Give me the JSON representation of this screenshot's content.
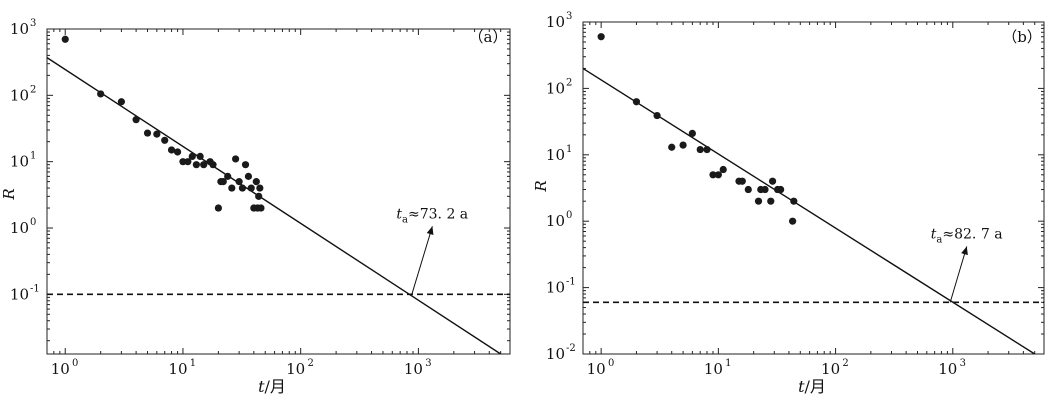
{
  "chart_data": [
    {
      "type": "scatter",
      "panel_label": "（a）",
      "x_scale": "log",
      "y_scale": "log",
      "xlim": [
        0.7,
        6000
      ],
      "ylim": [
        0.0126,
        1000
      ],
      "x_ticks": [
        1,
        10,
        100,
        1000
      ],
      "y_ticks": [
        0.1,
        1,
        10,
        100,
        1000
      ],
      "x_tick_labels": [
        "10",
        "10",
        "10",
        "10"
      ],
      "x_tick_exponents": [
        "0",
        "1",
        "2",
        "3"
      ],
      "y_tick_labels": [
        "10",
        "10",
        "10",
        "10",
        "10"
      ],
      "y_tick_exponents": [
        "-1",
        "0",
        "1",
        "2",
        "3"
      ],
      "xlabel": "t",
      "xlabel_unit": "/月",
      "ylabel": "R",
      "points": [
        [
          1,
          700
        ],
        [
          2,
          105
        ],
        [
          3,
          80
        ],
        [
          4,
          43
        ],
        [
          5,
          27
        ],
        [
          6,
          26
        ],
        [
          7,
          21
        ],
        [
          8,
          15
        ],
        [
          9,
          14
        ],
        [
          10,
          10
        ],
        [
          11,
          10
        ],
        [
          12,
          12
        ],
        [
          13,
          9
        ],
        [
          14,
          12
        ],
        [
          15,
          9
        ],
        [
          17,
          10
        ],
        [
          18,
          9
        ],
        [
          20,
          2
        ],
        [
          21,
          5
        ],
        [
          22,
          5
        ],
        [
          24,
          6
        ],
        [
          26,
          4
        ],
        [
          28,
          11
        ],
        [
          30,
          5
        ],
        [
          32,
          4
        ],
        [
          34,
          9
        ],
        [
          36,
          6
        ],
        [
          38,
          4
        ],
        [
          40,
          2
        ],
        [
          42,
          5
        ],
        [
          43,
          2
        ],
        [
          44,
          3
        ],
        [
          45,
          4
        ],
        [
          46,
          2
        ]
      ],
      "fit_line": [
        [
          0.7,
          370
        ],
        [
          5000,
          0.0126
        ]
      ],
      "threshold": 0.1,
      "annotation": {
        "t_symbol": "t",
        "t_subscript": "a",
        "text": "≈73. 2 a",
        "target": [
          880,
          0.1
        ],
        "label_at": [
          1000,
          1.4
        ]
      }
    },
    {
      "type": "scatter",
      "panel_label": "（b）",
      "x_scale": "log",
      "y_scale": "log",
      "xlim": [
        0.7,
        6000
      ],
      "ylim": [
        0.01,
        1000
      ],
      "x_ticks": [
        1,
        10,
        100,
        1000
      ],
      "y_ticks": [
        0.01,
        0.1,
        1,
        10,
        100,
        1000
      ],
      "x_tick_labels": [
        "10",
        "10",
        "10",
        "10"
      ],
      "x_tick_exponents": [
        "0",
        "1",
        "2",
        "3"
      ],
      "y_tick_labels": [
        "10",
        "10",
        "10",
        "10",
        "10",
        "10"
      ],
      "y_tick_exponents": [
        "-2",
        "-1",
        "0",
        "1",
        "2",
        "3"
      ],
      "xlabel": "t",
      "xlabel_unit": "/月",
      "ylabel": "R",
      "points": [
        [
          1,
          600
        ],
        [
          2,
          63
        ],
        [
          3,
          39
        ],
        [
          4,
          13
        ],
        [
          5,
          14
        ],
        [
          6,
          21
        ],
        [
          7,
          12
        ],
        [
          8,
          12
        ],
        [
          9,
          5
        ],
        [
          10,
          5
        ],
        [
          11,
          6
        ],
        [
          15,
          4
        ],
        [
          16,
          4
        ],
        [
          18,
          3
        ],
        [
          22,
          2
        ],
        [
          23,
          3
        ],
        [
          25,
          3
        ],
        [
          28,
          2
        ],
        [
          29,
          4
        ],
        [
          32,
          3
        ],
        [
          34,
          3
        ],
        [
          43,
          1
        ],
        [
          44,
          2
        ]
      ],
      "fit_line": [
        [
          0.7,
          200
        ],
        [
          5000,
          0.01
        ]
      ],
      "threshold": 0.06,
      "annotation": {
        "t_symbol": "t",
        "t_subscript": "a",
        "text": "≈82. 7 a",
        "target": [
          950,
          0.06
        ],
        "label_at": [
          1000,
          0.55
        ]
      }
    }
  ]
}
